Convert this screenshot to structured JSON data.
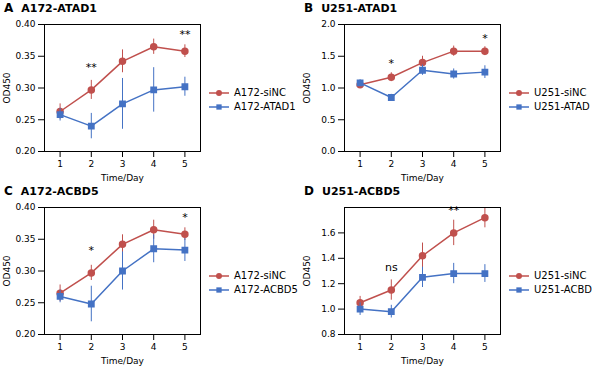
{
  "chart_data": [
    {
      "type": "line",
      "panel_label": "A",
      "title": "A172-ATAD1",
      "xlabel": "Time/Day",
      "ylabel": "OD450",
      "x": [
        1,
        2,
        3,
        4,
        5
      ],
      "xlim": [
        0.5,
        5.5
      ],
      "xticks": [
        1,
        2,
        3,
        4,
        5
      ],
      "ylim": [
        0.2,
        0.4
      ],
      "yticks": [
        {
          "value": 0.2,
          "label": "0.20"
        },
        {
          "value": 0.25,
          "label": "0.25"
        },
        {
          "value": 0.3,
          "label": "0.30"
        },
        {
          "value": 0.35,
          "label": "0.35"
        },
        {
          "value": 0.4,
          "label": "0.40"
        }
      ],
      "grid": false,
      "legend": "right",
      "series": [
        {
          "name": "A172-siNC",
          "color": "#C0504D",
          "marker": "circle",
          "values": [
            0.263,
            0.297,
            0.342,
            0.365,
            0.358
          ],
          "errors": [
            0.012,
            0.015,
            0.018,
            0.012,
            0.01
          ]
        },
        {
          "name": "A172-ATAD1",
          "color": "#4472C4",
          "marker": "square",
          "values": [
            0.258,
            0.24,
            0.275,
            0.297,
            0.302
          ],
          "errors": [
            0.01,
            0.02,
            0.04,
            0.035,
            0.015
          ]
        }
      ],
      "annotations": [
        {
          "x": 2,
          "y": 0.327,
          "text": "**"
        },
        {
          "x": 5,
          "y": 0.378,
          "text": "**"
        }
      ]
    },
    {
      "type": "line",
      "panel_label": "B",
      "title": "U251-ATAD1",
      "xlabel": "Time/Day",
      "ylabel": "OD450",
      "x": [
        1,
        2,
        3,
        4,
        5
      ],
      "xlim": [
        0.5,
        5.5
      ],
      "xticks": [
        1,
        2,
        3,
        4,
        5
      ],
      "ylim": [
        0.0,
        2.0
      ],
      "yticks": [
        {
          "value": 0.0,
          "label": "0.0"
        },
        0.5,
        {
          "value": 1.0,
          "label": "1.0"
        },
        1.5,
        {
          "value": 2.0,
          "label": "2.0"
        }
      ],
      "grid": false,
      "legend": "right",
      "series": [
        {
          "name": "U251-siNC",
          "color": "#C0504D",
          "marker": "circle",
          "values": [
            1.05,
            1.17,
            1.4,
            1.58,
            1.58
          ],
          "errors": [
            0.05,
            0.07,
            0.1,
            0.08,
            0.07
          ]
        },
        {
          "name": "U251-ATAD",
          "color": "#4472C4",
          "marker": "square",
          "values": [
            1.08,
            0.85,
            1.28,
            1.22,
            1.25
          ],
          "errors": [
            0.05,
            0.05,
            0.08,
            0.08,
            0.1
          ]
        }
      ],
      "annotations": [
        {
          "x": 2,
          "y": 1.33,
          "text": "*"
        },
        {
          "x": 5,
          "y": 1.73,
          "text": "*"
        }
      ]
    },
    {
      "type": "line",
      "panel_label": "C",
      "title": "A172-ACBD5",
      "xlabel": "Time/Day",
      "ylabel": "OD450",
      "x": [
        1,
        2,
        3,
        4,
        5
      ],
      "xlim": [
        0.5,
        5.5
      ],
      "xticks": [
        1,
        2,
        3,
        4,
        5
      ],
      "ylim": [
        0.2,
        0.4
      ],
      "yticks": [
        {
          "value": 0.2,
          "label": "0.20"
        },
        {
          "value": 0.25,
          "label": "0.25"
        },
        {
          "value": 0.3,
          "label": "0.30"
        },
        {
          "value": 0.35,
          "label": "0.35"
        },
        {
          "value": 0.4,
          "label": "0.40"
        }
      ],
      "grid": false,
      "legend": "right",
      "series": [
        {
          "name": "A172-siNC",
          "color": "#C0504D",
          "marker": "circle",
          "values": [
            0.265,
            0.297,
            0.342,
            0.365,
            0.358
          ],
          "errors": [
            0.013,
            0.012,
            0.015,
            0.015,
            0.01
          ]
        },
        {
          "name": "A172-ACBD5",
          "color": "#4472C4",
          "marker": "square",
          "values": [
            0.26,
            0.248,
            0.3,
            0.335,
            0.333
          ],
          "errors": [
            0.01,
            0.028,
            0.03,
            0.022,
            0.018
          ]
        }
      ],
      "annotations": [
        {
          "x": 2,
          "y": 0.327,
          "text": "*"
        },
        {
          "x": 5,
          "y": 0.378,
          "text": "*"
        }
      ]
    },
    {
      "type": "line",
      "panel_label": "D",
      "title": "U251-ACBD5",
      "xlabel": "Time/Day",
      "ylabel": "OD450",
      "x": [
        1,
        2,
        3,
        4,
        5
      ],
      "xlim": [
        0.5,
        5.5
      ],
      "xticks": [
        1,
        2,
        3,
        4,
        5
      ],
      "ylim": [
        0.8,
        1.8
      ],
      "yticks": [
        0.8,
        {
          "value": 1.0,
          "label": "1.0"
        },
        1.2,
        1.4,
        1.6
      ],
      "grid": false,
      "legend": "right",
      "series": [
        {
          "name": "U251-siNC",
          "color": "#C0504D",
          "marker": "circle",
          "values": [
            1.05,
            1.15,
            1.42,
            1.6,
            1.72
          ],
          "errors": [
            0.05,
            0.08,
            0.1,
            0.1,
            0.08
          ]
        },
        {
          "name": "U251-ACBD",
          "color": "#4472C4",
          "marker": "square",
          "values": [
            1.0,
            0.98,
            1.25,
            1.28,
            1.28
          ],
          "errors": [
            0.05,
            0.05,
            0.08,
            0.08,
            0.07
          ]
        }
      ],
      "annotations": [
        {
          "x": 2,
          "y": 1.3,
          "text": "ns"
        },
        {
          "x": 4,
          "y": 1.75,
          "text": "**"
        }
      ]
    }
  ]
}
